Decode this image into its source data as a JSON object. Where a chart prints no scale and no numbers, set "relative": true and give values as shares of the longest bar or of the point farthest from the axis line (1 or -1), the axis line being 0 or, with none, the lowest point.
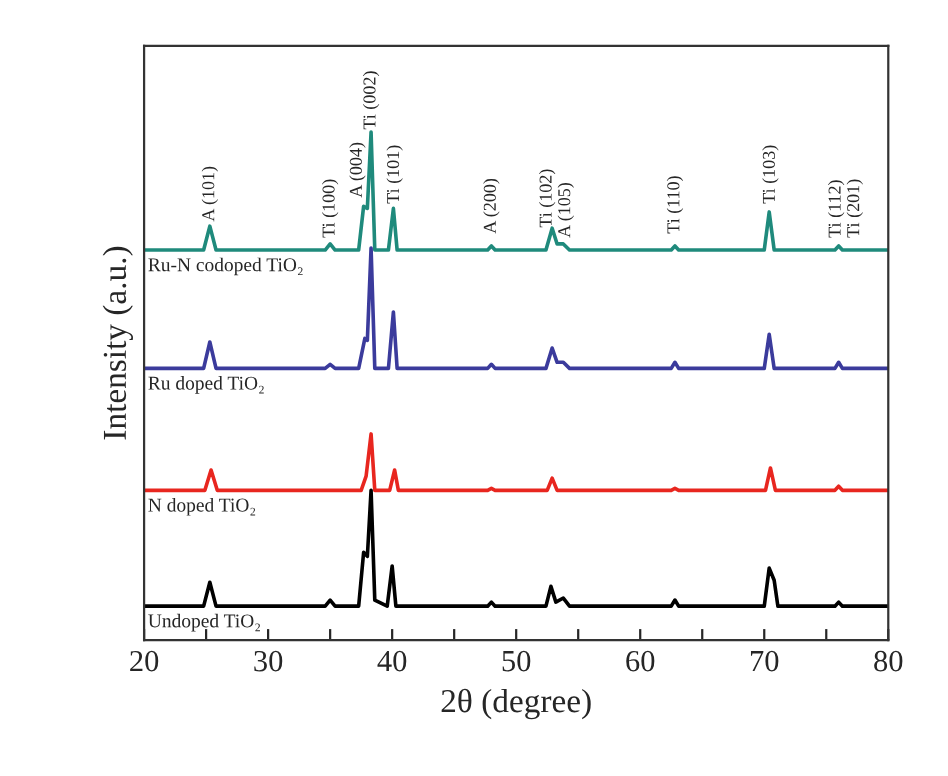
{
  "chart_data": {
    "type": "line",
    "xlabel": "2θ (degree)",
    "ylabel": "Intensity (a.u.)",
    "relative": true,
    "tick_labels": "x",
    "grid": false,
    "legend": false,
    "marker": "none",
    "line_style": "solid",
    "xlim": [
      20,
      80
    ],
    "xticks": [
      20,
      {
        "value": 25,
        "label": null
      },
      30,
      {
        "value": 35,
        "label": null
      },
      40,
      {
        "value": 45,
        "label": null
      },
      50,
      {
        "value": 55,
        "label": null
      },
      60,
      {
        "value": 65,
        "label": null
      },
      70,
      {
        "value": 75,
        "label": null
      },
      80
    ],
    "series": [
      {
        "name": "Ru-N codoped TiO₂",
        "color": "#1f8a7c",
        "x": [
          20,
          24.8,
          25.3,
          25.8,
          34.6,
          35,
          35.4,
          37.3,
          37.7,
          38.0,
          38.3,
          38.6,
          39.7,
          40.1,
          40.4,
          47.7,
          48,
          48.3,
          52.4,
          52.9,
          53.3,
          53.8,
          54.3,
          62.5,
          62.8,
          63.1,
          70.0,
          70.4,
          70.8,
          75.7,
          76,
          76.3,
          80
        ],
        "values": [
          0.768,
          0.768,
          0.815,
          0.768,
          0.768,
          0.78,
          0.768,
          0.768,
          0.854,
          0.85,
          1.0,
          0.768,
          0.768,
          0.85,
          0.768,
          0.768,
          0.776,
          0.768,
          0.768,
          0.811,
          0.78,
          0.78,
          0.768,
          0.768,
          0.776,
          0.768,
          0.768,
          0.843,
          0.768,
          0.768,
          0.776,
          0.768,
          0.768
        ]
      },
      {
        "name": "Ru doped TiO₂",
        "color": "#3b3b9c",
        "x": [
          20,
          24.8,
          25.3,
          25.8,
          34.6,
          35,
          35.4,
          37.3,
          37.8,
          38.0,
          38.3,
          38.6,
          39.7,
          40.1,
          40.4,
          47.7,
          48,
          48.3,
          52.4,
          52.9,
          53.3,
          53.8,
          54.3,
          62.5,
          62.8,
          63.1,
          70.0,
          70.4,
          70.8,
          75.7,
          76,
          76.3,
          80
        ],
        "values": [
          0.535,
          0.535,
          0.587,
          0.535,
          0.535,
          0.543,
          0.535,
          0.535,
          0.594,
          0.59,
          0.772,
          0.535,
          0.535,
          0.646,
          0.535,
          0.535,
          0.543,
          0.535,
          0.535,
          0.575,
          0.547,
          0.547,
          0.535,
          0.535,
          0.547,
          0.535,
          0.535,
          0.602,
          0.535,
          0.535,
          0.547,
          0.535,
          0.535
        ]
      },
      {
        "name": "N doped TiO₂",
        "color": "#e8261f",
        "x": [
          20,
          24.9,
          25.4,
          25.9,
          37.5,
          37.9,
          38.3,
          38.6,
          39.8,
          40.2,
          40.5,
          47.7,
          48,
          48.3,
          52.5,
          52.9,
          53.3,
          62.5,
          62.8,
          63.1,
          70.1,
          70.5,
          70.9,
          75.7,
          76,
          76.3,
          80
        ],
        "values": [
          0.295,
          0.295,
          0.335,
          0.295,
          0.295,
          0.323,
          0.406,
          0.295,
          0.295,
          0.335,
          0.295,
          0.295,
          0.299,
          0.295,
          0.295,
          0.319,
          0.295,
          0.295,
          0.299,
          0.295,
          0.295,
          0.339,
          0.295,
          0.295,
          0.303,
          0.295,
          0.295
        ]
      },
      {
        "name": "Undoped TiO₂",
        "color": "#000000",
        "x": [
          20,
          24.8,
          25.3,
          25.8,
          34.6,
          35,
          35.4,
          37.3,
          37.7,
          38.0,
          38.3,
          38.6,
          39.6,
          40.0,
          40.3,
          47.7,
          48,
          48.3,
          52.4,
          52.8,
          53.2,
          53.8,
          54.3,
          62.5,
          62.8,
          63.1,
          70.0,
          70.4,
          70.8,
          71.1,
          75.7,
          76,
          76.3,
          80
        ],
        "values": [
          0.067,
          0.067,
          0.114,
          0.067,
          0.067,
          0.079,
          0.067,
          0.067,
          0.173,
          0.165,
          0.295,
          0.079,
          0.067,
          0.146,
          0.067,
          0.067,
          0.075,
          0.067,
          0.067,
          0.106,
          0.075,
          0.083,
          0.067,
          0.067,
          0.079,
          0.067,
          0.067,
          0.142,
          0.118,
          0.067,
          0.067,
          0.075,
          0.067,
          0.067
        ]
      }
    ],
    "annotations": [
      {
        "text": "A (101)",
        "x": 25.3,
        "y": 0.819
      },
      {
        "text": "Ti (100)",
        "x": 35,
        "y": 0.787
      },
      {
        "text": "A (004)",
        "x": 37.2,
        "y": 0.866
      },
      {
        "text": "Ti (002)",
        "x": 38.3,
        "y": 1.0
      },
      {
        "text": "Ti (101)",
        "x": 40.2,
        "y": 0.854
      },
      {
        "text": "A (200)",
        "x": 48,
        "y": 0.795
      },
      {
        "text": "Ti (102)",
        "x": 52.5,
        "y": 0.807
      },
      {
        "text": "A (105)",
        "x": 54.0,
        "y": 0.787
      },
      {
        "text": "Ti (110)",
        "x": 62.8,
        "y": 0.795
      },
      {
        "text": "Ti (103)",
        "x": 70.5,
        "y": 0.854
      },
      {
        "text": "Ti (112)",
        "x": 75.8,
        "y": 0.787
      },
      {
        "text": "Ti (201)",
        "x": 77.3,
        "y": 0.787
      }
    ]
  }
}
